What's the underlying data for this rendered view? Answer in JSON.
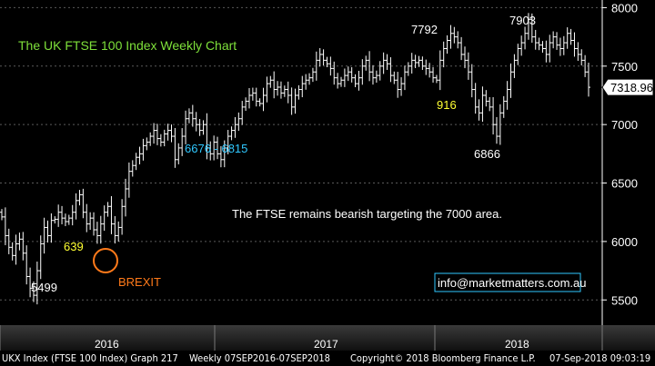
{
  "chart_data": {
    "type": "ohlc",
    "title": "The UK FTSE 100 Index Weekly Chart",
    "ylim": [
      5300,
      8050
    ],
    "y_ticks": [
      5500,
      6000,
      6500,
      7000,
      7500,
      8000
    ],
    "x_labels": [
      "2016",
      "2017",
      "2018"
    ],
    "last_price": "7318.96",
    "colors": {
      "background": "#000000",
      "bars": "#ffffff",
      "grid": "#5a5a5a",
      "title": "#7ee03a",
      "cyan": "#30c8ff",
      "yellow": "#ffff33",
      "orange": "#ff7a1a"
    },
    "annotations": {
      "low_2016": "5499",
      "label_639": "639",
      "brexit": "BREXIT",
      "range_6676_6815": "6676 - 6815",
      "peak_7792": "7792",
      "label_916": "916",
      "low_6866": "6866",
      "peak_7903": "7903",
      "note": "The FTSE remains bearish targeting the 7000 area.",
      "email": "info@marketmatters.com.au"
    },
    "weekly_close": [
      6210,
      6050,
      5950,
      5880,
      5980,
      6020,
      5900,
      5700,
      5600,
      5540,
      5750,
      5980,
      6120,
      6050,
      6180,
      6190,
      6250,
      6200,
      6170,
      6200,
      6250,
      6350,
      6400,
      6250,
      6150,
      6200,
      6100,
      6050,
      6150,
      6250,
      6300,
      6150,
      6050,
      6120,
      6300,
      6450,
      6600,
      6650,
      6720,
      6750,
      6820,
      6850,
      6900,
      6950,
      6880,
      6850,
      6920,
      6950,
      6900,
      6700,
      6800,
      6900,
      7050,
      7100,
      7050,
      7000,
      6950,
      7000,
      6800,
      6750,
      6850,
      6750,
      6700,
      6800,
      6900,
      6950,
      7000,
      7050,
      7150,
      7200,
      7250,
      7270,
      7200,
      7180,
      7250,
      7350,
      7380,
      7300,
      7320,
      7270,
      7300,
      7250,
      7150,
      7250,
      7300,
      7350,
      7380,
      7400,
      7450,
      7550,
      7600,
      7550,
      7520,
      7480,
      7400,
      7350,
      7380,
      7420,
      7450,
      7400,
      7350,
      7400,
      7500,
      7550,
      7450,
      7400,
      7420,
      7500,
      7550,
      7520,
      7420,
      7380,
      7300,
      7350,
      7450,
      7500,
      7550,
      7530,
      7550,
      7500,
      7480,
      7450,
      7400,
      7380,
      7550,
      7650,
      7720,
      7780,
      7750,
      7700,
      7600,
      7550,
      7450,
      7300,
      7150,
      7100,
      7250,
      7200,
      7150,
      7000,
      6900,
      7100,
      7200,
      7300,
      7450,
      7550,
      7650,
      7700,
      7780,
      7900,
      7750,
      7700,
      7680,
      7650,
      7600,
      7700,
      7750,
      7680,
      7650,
      7700,
      7780,
      7720,
      7650,
      7600,
      7550,
      7450,
      7319
    ]
  }
}
